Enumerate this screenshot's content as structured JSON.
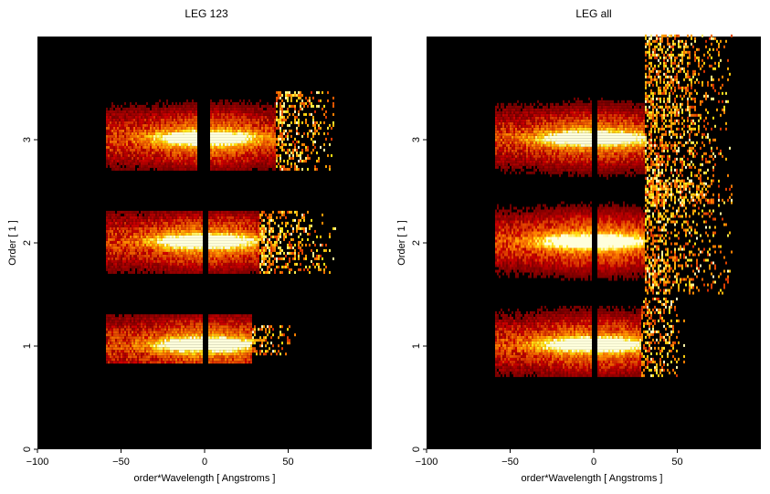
{
  "chart_data": [
    {
      "type": "heatmap",
      "title": "LEG 123",
      "xlabel": "order*Wavelength [ Angstroms ]",
      "ylabel": "Order [ 1 ]",
      "xlim": [
        -100,
        100
      ],
      "ylim": [
        0,
        4
      ],
      "x_ticks": [
        -100,
        -50,
        0,
        50
      ],
      "y_ticks": [
        0,
        1,
        2,
        3
      ],
      "x_tick_labels": [
        "−100",
        "−50",
        "0",
        "50"
      ],
      "y_tick_labels": [
        "0",
        "1",
        "2",
        "3"
      ],
      "colormap": "black-red-orange-yellow-white",
      "background": "#000000",
      "bands": [
        {
          "order": 1,
          "y": [
            0.83,
            1.3
          ],
          "x": [
            -59,
            28
          ],
          "gap": [
            -2,
            2
          ],
          "sparse_x": [
            28,
            54
          ],
          "sparse_y": [
            0.9,
            1.2
          ]
        },
        {
          "order": 2,
          "y": [
            1.7,
            2.3
          ],
          "x": [
            -59,
            32
          ],
          "gap": [
            -2,
            2
          ],
          "sparse_x": [
            32,
            78
          ]
        },
        {
          "order": 3,
          "y": [
            2.7,
            3.45
          ],
          "x": [
            -59,
            42
          ],
          "gap": [
            -5,
            3
          ],
          "sparse_x": [
            42,
            78
          ]
        }
      ],
      "peak_half_width": 20
    },
    {
      "type": "heatmap",
      "title": "LEG all",
      "xlabel": "order*Wavelength [ Angstroms ]",
      "ylabel": "Order [ 1 ]",
      "xlim": [
        -100,
        100
      ],
      "ylim": [
        0,
        4
      ],
      "x_ticks": [
        -100,
        -50,
        0,
        50
      ],
      "y_ticks": [
        0,
        1,
        2,
        3
      ],
      "x_tick_labels": [
        "−100",
        "−50",
        "0",
        "50"
      ],
      "y_tick_labels": [
        "0",
        "1",
        "2",
        "3"
      ],
      "colormap": "black-red-orange-yellow-white",
      "background": "#000000",
      "bands": [
        {
          "order": 1,
          "y": [
            0.7,
            1.45
          ],
          "x": [
            -59,
            28
          ],
          "gap": [
            -2,
            2
          ],
          "sparse_x": [
            28,
            55
          ]
        },
        {
          "order": 2,
          "y": [
            1.5,
            2.6
          ],
          "x": [
            -59,
            30
          ],
          "gap": [
            -2,
            2
          ],
          "sparse_x": [
            30,
            82
          ]
        },
        {
          "order": 3,
          "y": [
            2.4,
            4.0
          ],
          "x": [
            -59,
            30
          ],
          "gap": [
            -2,
            2
          ],
          "sparse_x": [
            30,
            82
          ]
        }
      ],
      "peak_half_width": 22
    }
  ]
}
